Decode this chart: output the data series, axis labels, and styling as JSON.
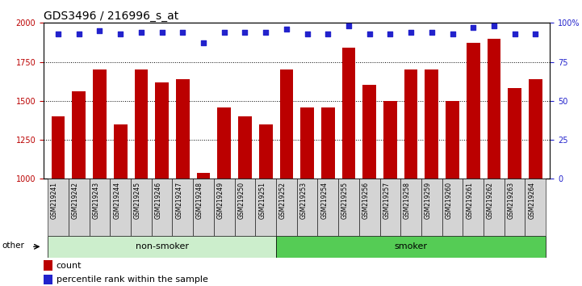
{
  "title": "GDS3496 / 216996_s_at",
  "samples": [
    "GSM219241",
    "GSM219242",
    "GSM219243",
    "GSM219244",
    "GSM219245",
    "GSM219246",
    "GSM219247",
    "GSM219248",
    "GSM219249",
    "GSM219250",
    "GSM219251",
    "GSM219252",
    "GSM219253",
    "GSM219254",
    "GSM219255",
    "GSM219256",
    "GSM219257",
    "GSM219258",
    "GSM219259",
    "GSM219260",
    "GSM219261",
    "GSM219262",
    "GSM219263",
    "GSM219264"
  ],
  "bar_values": [
    1400,
    1560,
    1700,
    1350,
    1700,
    1620,
    1640,
    1040,
    1460,
    1400,
    1350,
    1700,
    1460,
    1460,
    1840,
    1600,
    1500,
    1700,
    1700,
    1500,
    1870,
    1900,
    1580,
    1640
  ],
  "percentile_values": [
    93,
    93,
    95,
    93,
    94,
    94,
    94,
    87,
    94,
    94,
    94,
    96,
    93,
    93,
    98,
    93,
    93,
    94,
    94,
    93,
    97,
    98,
    93,
    93
  ],
  "nonsmoker_count": 11,
  "smoker_count": 13,
  "group_labels": [
    "non-smoker",
    "smoker"
  ],
  "group_colors": [
    "#cceecc",
    "#55cc55"
  ],
  "bar_color": "#bb0000",
  "dot_color": "#2222cc",
  "ylim_left": [
    1000,
    2000
  ],
  "ylim_right": [
    0,
    100
  ],
  "yticks_left": [
    1000,
    1250,
    1500,
    1750,
    2000
  ],
  "yticks_right": [
    0,
    25,
    50,
    75,
    100
  ],
  "title_fontsize": 10,
  "tick_fontsize": 7,
  "label_fontsize": 8,
  "sample_fontsize": 5.5
}
